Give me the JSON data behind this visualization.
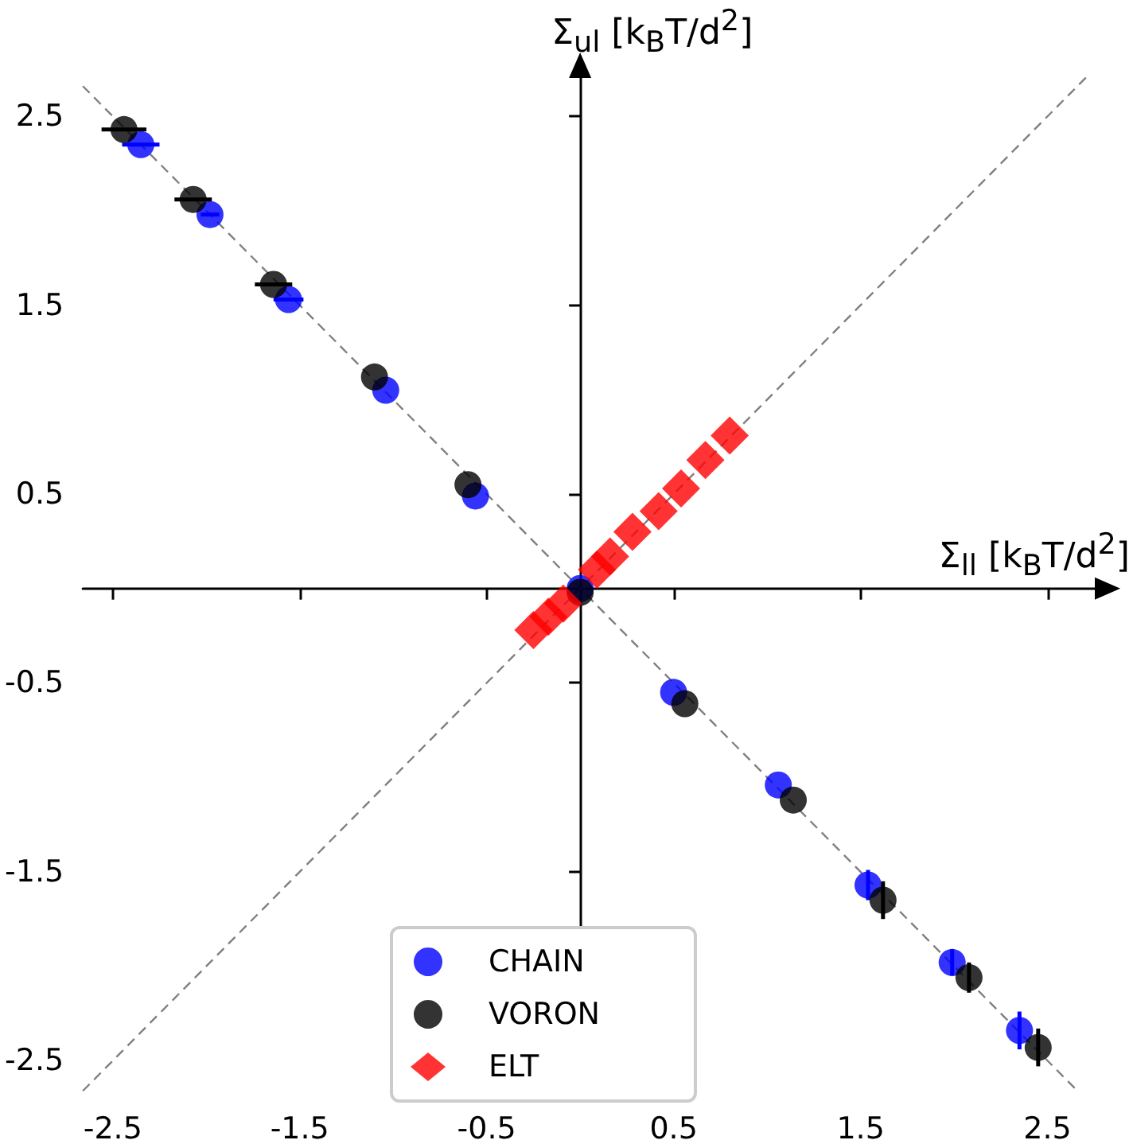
{
  "chart_data": {
    "type": "scatter",
    "xlabel": "Σ$_{ll}$ [k$_{B}$T/d$^{2}$]",
    "ylabel": "Σ$_{ul}$ [k$_{B}$T/d$^{2}$]",
    "xlim": [
      -2.66,
      2.77
    ],
    "ylim": [
      -2.68,
      2.72
    ],
    "xticks": [
      -2.5,
      -1.5,
      -0.5,
      0.5,
      1.5,
      2.5
    ],
    "yticks": [
      -2.5,
      -1.5,
      -0.5,
      0.5,
      1.5,
      2.5
    ],
    "grid": false,
    "legend": "bottom",
    "series": [
      {
        "type": "line",
        "color": "#808080",
        "line_style": "dashed",
        "marker": "none",
        "x": [
          -2.66,
          2.72
        ],
        "values": [
          -2.66,
          2.72
        ]
      },
      {
        "type": "line",
        "color": "#808080",
        "line_style": "dashed",
        "marker": "none",
        "x": [
          -2.66,
          2.66
        ],
        "values": [
          2.66,
          -2.66
        ]
      },
      {
        "name": "CHAIN",
        "color": "#0000ff",
        "marker": "circle",
        "x": [
          -2.35,
          -1.98,
          -1.56,
          -1.04,
          -0.56,
          0,
          0.5,
          1.06,
          1.54,
          1.99,
          2.35
        ],
        "values": [
          2.35,
          1.98,
          1.53,
          1.05,
          0.49,
          0,
          -0.55,
          -1.04,
          -1.57,
          -1.98,
          -2.34
        ],
        "xerrors": [
          0.1,
          0.05,
          0.08,
          null,
          null,
          null,
          null,
          null,
          null,
          null,
          null
        ],
        "errors": [
          null,
          null,
          null,
          null,
          null,
          null,
          null,
          null,
          0.08,
          0.07,
          0.1
        ]
      },
      {
        "name": "VORON",
        "color": "#000000",
        "marker": "circle",
        "x": [
          -2.44,
          -2.07,
          -1.64,
          -1.1,
          -0.6,
          0,
          0.56,
          1.14,
          1.62,
          2.08,
          2.45
        ],
        "values": [
          2.43,
          2.06,
          1.61,
          1.12,
          0.55,
          -0.02,
          -0.61,
          -1.12,
          -1.65,
          -2.06,
          -2.43
        ],
        "xerrors": [
          0.12,
          0.1,
          0.1,
          null,
          null,
          null,
          null,
          null,
          null,
          null,
          null
        ],
        "errors": [
          null,
          null,
          null,
          null,
          null,
          null,
          null,
          null,
          0.1,
          0.08,
          0.1
        ]
      },
      {
        "name": "ELT",
        "color": "#ff0000",
        "marker": "diamond",
        "x": [
          -0.25,
          -0.17,
          -0.09,
          0,
          0.09,
          0.16,
          0.28,
          0.42,
          0.54,
          0.67,
          0.8
        ],
        "values": [
          -0.22,
          -0.15,
          -0.08,
          null,
          0.1,
          0.17,
          0.3,
          0.41,
          0.53,
          0.68,
          0.81
        ]
      }
    ]
  }
}
